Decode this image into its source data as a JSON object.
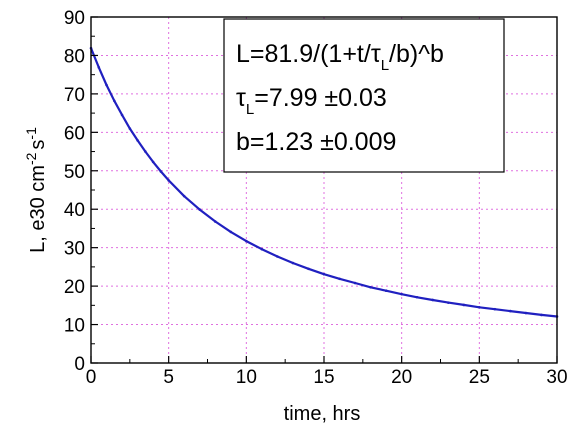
{
  "chart_data": {
    "type": "line",
    "xlabel": "time, hrs",
    "ylabel": {
      "main": "L, e30 cm",
      "sup1": "-2",
      "unit2": "s",
      "sup2": "-1"
    },
    "xlim": [
      0,
      30
    ],
    "ylim": [
      0,
      90
    ],
    "xticks": [
      0,
      5,
      10,
      15,
      20,
      25,
      30
    ],
    "yticks": [
      0,
      10,
      20,
      30,
      40,
      50,
      60,
      70,
      80,
      90
    ],
    "grid": true,
    "grid_color": "#e070e0",
    "series": [
      {
        "color": "#2020c0",
        "x": [
          0,
          0.5,
          1,
          1.5,
          2,
          2.5,
          3,
          3.5,
          4,
          4.5,
          5,
          6,
          7,
          8,
          9,
          10,
          11,
          12,
          13,
          14,
          15,
          16,
          17,
          18,
          19,
          20,
          21,
          22,
          23,
          24,
          25,
          26,
          27,
          28,
          29,
          30
        ],
        "y": [
          81.9,
          76.9,
          72.3,
          68.2,
          64.5,
          61.0,
          57.9,
          55.0,
          52.3,
          49.8,
          47.5,
          43.4,
          39.9,
          36.8,
          34.1,
          31.7,
          29.6,
          27.7,
          26.0,
          24.5,
          23.1,
          21.9,
          20.8,
          19.7,
          18.8,
          17.9,
          17.1,
          16.4,
          15.7,
          15.1,
          14.5,
          14.0,
          13.5,
          13.0,
          12.5,
          12.1
        ]
      }
    ],
    "annotation": {
      "line1": "L=81.9/(1+t/τ",
      "line1_sub": "L",
      "line1_tail": "/b)^b",
      "line2": "τ",
      "line2_sub": "L",
      "line2_tail": "=7.99 ±0.03",
      "line3": "b=1.23  ±0.009",
      "placement": "top-right"
    }
  }
}
